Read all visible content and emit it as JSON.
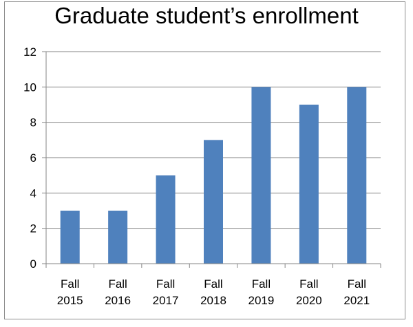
{
  "chart_data": {
    "type": "bar",
    "title": "Graduate student’s enrollment",
    "xlabel": "",
    "ylabel": "",
    "categories": [
      [
        "Fall",
        "2015"
      ],
      [
        "Fall",
        "2016"
      ],
      [
        "Fall",
        "2017"
      ],
      [
        "Fall",
        "2018"
      ],
      [
        "Fall",
        "2019"
      ],
      [
        "Fall",
        "2020"
      ],
      [
        "Fall",
        "2021"
      ]
    ],
    "values": [
      3,
      3,
      5,
      7,
      10,
      9,
      10
    ],
    "ylim": [
      0,
      12
    ],
    "yticks": [
      0,
      2,
      4,
      6,
      8,
      10,
      12
    ],
    "grid": true,
    "legend": "none",
    "colors": {
      "bar": "#4f81bd",
      "grid": "#868686",
      "axis": "#868686"
    }
  }
}
